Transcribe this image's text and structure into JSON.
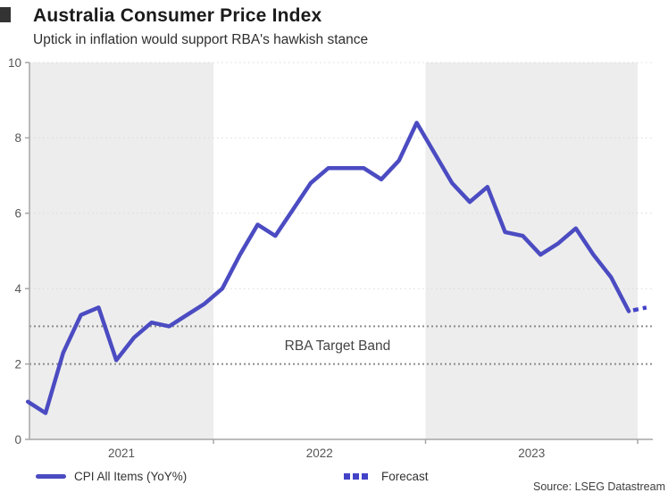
{
  "chart_data": {
    "type": "line",
    "title": "Australia Consumer Price Index",
    "subtitle": "Uptick in inflation would support RBA's hawkish stance",
    "x": [
      "Feb-2021",
      "Mar-2021",
      "Apr-2021",
      "May-2021",
      "Jun-2021",
      "Jul-2021",
      "Aug-2021",
      "Sep-2021",
      "Oct-2021",
      "Nov-2021",
      "Dec-2021",
      "Jan-2022",
      "Feb-2022",
      "Mar-2022",
      "Apr-2022",
      "May-2022",
      "Jun-2022",
      "Jul-2022",
      "Aug-2022",
      "Sep-2022",
      "Oct-2022",
      "Nov-2022",
      "Dec-2022",
      "Jan-2023",
      "Feb-2023",
      "Mar-2023",
      "Apr-2023",
      "May-2023",
      "Jun-2023",
      "Jul-2023",
      "Aug-2023",
      "Sep-2023",
      "Oct-2023",
      "Nov-2023",
      "Dec-2023"
    ],
    "series": [
      {
        "name": "CPI All Items (YoY%)",
        "style": "solid",
        "color": "#4b4bc2",
        "values": [
          1.0,
          0.7,
          2.3,
          3.3,
          3.5,
          2.1,
          2.7,
          3.1,
          3.0,
          3.3,
          3.6,
          4.0,
          4.9,
          5.7,
          5.4,
          6.1,
          6.8,
          7.2,
          7.2,
          7.2,
          6.9,
          7.4,
          8.4,
          7.6,
          6.8,
          6.3,
          6.7,
          5.5,
          5.4,
          4.9,
          5.2,
          5.6,
          4.9,
          4.3,
          3.4
        ]
      },
      {
        "name": "Forecast",
        "style": "dotted",
        "color": "#4343c8",
        "x": [
          "Dec-2023",
          "Jan-2024"
        ],
        "values": [
          3.4,
          3.5
        ]
      }
    ],
    "ylim": [
      0,
      10
    ],
    "y_ticks": [
      0,
      2,
      4,
      6,
      8,
      10
    ],
    "x_tick_years": [
      "2021",
      "2022",
      "2023"
    ],
    "year_shading": "alternating-gray-from-2021",
    "grid": "dotted-horizontal",
    "target_band": {
      "low": 2,
      "high": 3,
      "label": "RBA Target Band"
    },
    "legend_position": "bottom",
    "source": "Source: LSEG Datastream"
  },
  "colors": {
    "line": "#4b4bc2",
    "forecast": "#4343c8",
    "band_fill": "#ededed",
    "grid_dotted": "#d9d9d9",
    "target_band_line": "#8c8c8c",
    "axis": "#a6a6a6",
    "tick_text": "#555555",
    "annotation_text": "#444444"
  }
}
